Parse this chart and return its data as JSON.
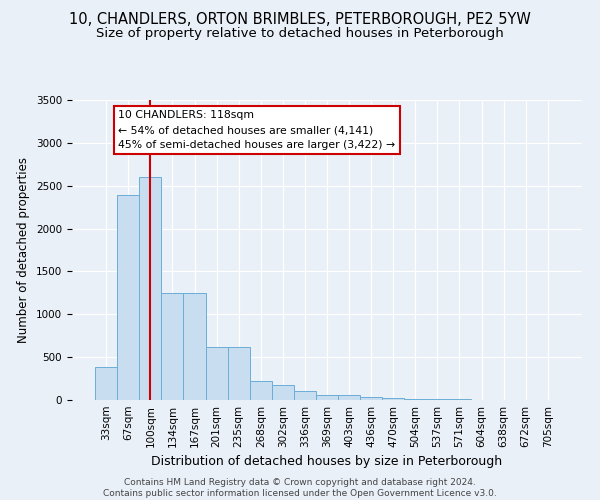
{
  "title": "10, CHANDLERS, ORTON BRIMBLES, PETERBOROUGH, PE2 5YW",
  "subtitle": "Size of property relative to detached houses in Peterborough",
  "xlabel": "Distribution of detached houses by size in Peterborough",
  "ylabel": "Number of detached properties",
  "categories": [
    "33sqm",
    "67sqm",
    "100sqm",
    "134sqm",
    "167sqm",
    "201sqm",
    "235sqm",
    "268sqm",
    "302sqm",
    "336sqm",
    "369sqm",
    "403sqm",
    "436sqm",
    "470sqm",
    "504sqm",
    "537sqm",
    "571sqm",
    "604sqm",
    "638sqm",
    "672sqm",
    "705sqm"
  ],
  "values": [
    390,
    2390,
    2600,
    1250,
    1250,
    620,
    620,
    220,
    170,
    100,
    60,
    55,
    30,
    25,
    15,
    8,
    6,
    4,
    3,
    2,
    1
  ],
  "bar_color": "#c9ddf0",
  "bar_edge_color": "#6aaed6",
  "annotation_box_text": "10 CHANDLERS: 118sqm\n← 54% of detached houses are smaller (4,141)\n45% of semi-detached houses are larger (3,422) →",
  "vline_color": "#cc0000",
  "footer": "Contains HM Land Registry data © Crown copyright and database right 2024.\nContains public sector information licensed under the Open Government Licence v3.0.",
  "bg_color": "#eaf0f8",
  "grid_color": "#ffffff",
  "ylim": [
    0,
    3500
  ],
  "title_fontsize": 10.5,
  "subtitle_fontsize": 9.5,
  "ylabel_fontsize": 8.5,
  "xlabel_fontsize": 9,
  "tick_fontsize": 7.5,
  "footer_fontsize": 6.5
}
